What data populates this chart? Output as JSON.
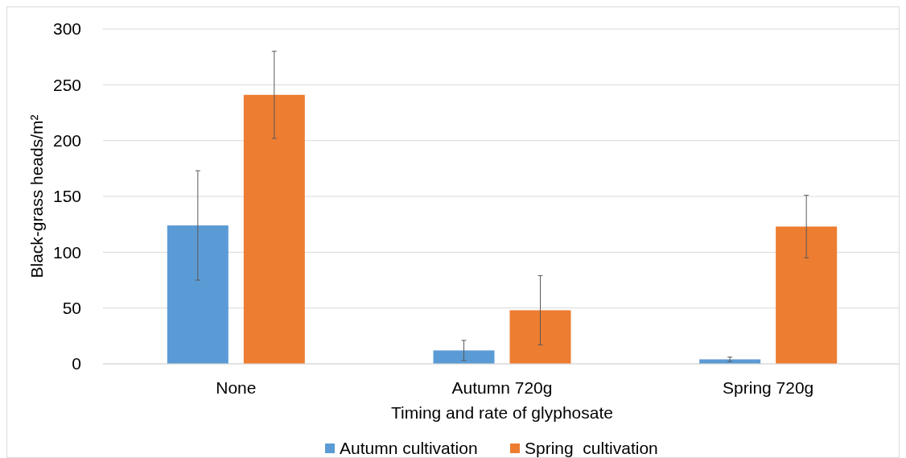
{
  "chart_data": {
    "type": "bar",
    "xlabel": "Timing and rate of glyphosate",
    "ylabel": "Black-grass heads/m²",
    "categories": [
      "None",
      "Autumn 720g",
      "Spring 720g"
    ],
    "series": [
      {
        "name": "Autumn cultivation",
        "color": "#5b9bd5",
        "values": [
          124,
          12,
          4
        ],
        "errors": [
          49,
          9,
          2
        ]
      },
      {
        "name": "Spring  cultivation",
        "color": "#ed7d31",
        "values": [
          241,
          48,
          123
        ],
        "errors": [
          39,
          31,
          28
        ]
      }
    ],
    "ylim": [
      0,
      300
    ],
    "yticks": [
      0,
      50,
      100,
      150,
      200,
      250,
      300
    ],
    "grid": "y",
    "legend": "bottom"
  }
}
